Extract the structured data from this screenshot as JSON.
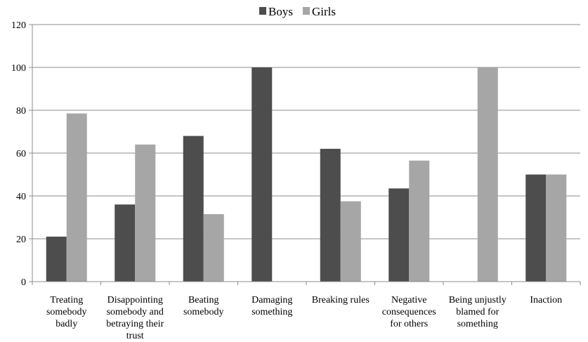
{
  "chart_data": {
    "type": "bar",
    "categories": [
      [
        "Treating",
        "somebody",
        "badly"
      ],
      [
        "Disappointing",
        "somebody and",
        "betraying their",
        "trust"
      ],
      [
        "Beating",
        "somebody"
      ],
      [
        "Damaging",
        "something"
      ],
      [
        "Breaking rules"
      ],
      [
        "Negative",
        "consequences",
        "for others"
      ],
      [
        "Being unjustly",
        "blamed for",
        "something"
      ],
      [
        "Inaction"
      ]
    ],
    "series": [
      {
        "name": "Boys",
        "color": "#4d4d4d",
        "values": [
          21,
          36,
          68,
          100,
          62,
          43.5,
          0,
          50
        ]
      },
      {
        "name": "Girls",
        "color": "#a6a6a6",
        "values": [
          78.5,
          64,
          31.5,
          0,
          37.5,
          56.5,
          100,
          50
        ]
      }
    ],
    "ylim": [
      0,
      120
    ],
    "yticks": [
      0,
      20,
      40,
      60,
      80,
      100,
      120
    ],
    "grid": true,
    "legend_position": "top-center"
  }
}
